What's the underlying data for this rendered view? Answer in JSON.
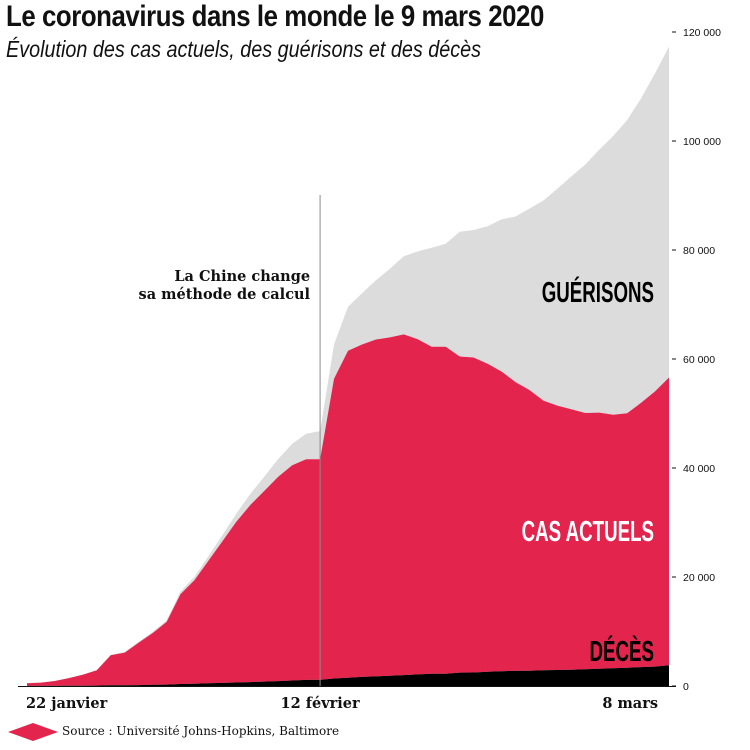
{
  "header": {
    "title": "Le coronavirus dans le monde le 9 mars 2020",
    "subtitle": "Évolution des cas actuels, des guérisons et des décès"
  },
  "footer": {
    "source": "Source : Université Johns-Hopkins, Baltimore"
  },
  "colors": {
    "recovered": "#dcdcdc",
    "active": "#e3254d",
    "deaths": "#000000",
    "logo": "#e3254d"
  },
  "chart_data": {
    "type": "area",
    "stacked": true,
    "x_labels": [
      "22 janvier",
      "12 février",
      "8 mars"
    ],
    "ylim": [
      0,
      120000
    ],
    "yticks": [
      0,
      20000,
      40000,
      60000,
      80000,
      100000,
      120000
    ],
    "ytick_labels": [
      "0",
      "20 000",
      "40 000",
      "60 000",
      "80 000",
      "100 000",
      "120 000"
    ],
    "y_axis_position": "right",
    "grid": false,
    "annotation": {
      "at_x": "12 février",
      "lines": [
        "La Chine change",
        "sa méthode de calcul"
      ]
    },
    "x": [
      "2020-01-22",
      "2020-01-23",
      "2020-01-24",
      "2020-01-25",
      "2020-01-26",
      "2020-01-27",
      "2020-01-28",
      "2020-01-29",
      "2020-01-30",
      "2020-01-31",
      "2020-02-01",
      "2020-02-02",
      "2020-02-03",
      "2020-02-04",
      "2020-02-05",
      "2020-02-06",
      "2020-02-07",
      "2020-02-08",
      "2020-02-09",
      "2020-02-10",
      "2020-02-11",
      "2020-02-12",
      "2020-02-13",
      "2020-02-14",
      "2020-02-15",
      "2020-02-16",
      "2020-02-17",
      "2020-02-18",
      "2020-02-19",
      "2020-02-20",
      "2020-02-21",
      "2020-02-22",
      "2020-02-23",
      "2020-02-24",
      "2020-02-25",
      "2020-02-26",
      "2020-02-27",
      "2020-02-28",
      "2020-02-29",
      "2020-03-01",
      "2020-03-02",
      "2020-03-03",
      "2020-03-04",
      "2020-03-05",
      "2020-03-06",
      "2020-03-07",
      "2020-03-08"
    ],
    "series": [
      {
        "name": "DÉCÈS",
        "label_color": "#000000",
        "values": [
          17,
          18,
          26,
          42,
          56,
          82,
          131,
          133,
          171,
          213,
          259,
          362,
          426,
          492,
          564,
          634,
          719,
          806,
          906,
          1013,
          1113,
          1118,
          1371,
          1523,
          1666,
          1770,
          1868,
          2007,
          2122,
          2247,
          2251,
          2458,
          2469,
          2629,
          2708,
          2770,
          2814,
          2872,
          2941,
          2996,
          3085,
          3160,
          3254,
          3348,
          3460,
          3558,
          3802
        ]
      },
      {
        "name": "CAS ACTUELS",
        "label_color": "#ffffff",
        "values": [
          500,
          600,
          900,
          1400,
          2000,
          2800,
          5500,
          6000,
          7800,
          9500,
          11500,
          16500,
          19000,
          22500,
          26000,
          29500,
          32500,
          35000,
          37500,
          39500,
          40500,
          40500,
          55000,
          60000,
          61000,
          61800,
          62100,
          62500,
          61500,
          60000,
          60000,
          58000,
          57800,
          56500,
          55000,
          53000,
          51500,
          49500,
          48500,
          47800,
          47000,
          47000,
          46500,
          46700,
          48500,
          50500,
          52800
        ]
      },
      {
        "name": "GUÉRISONS",
        "label_color": "#000000",
        "values": [
          30,
          32,
          36,
          39,
          52,
          61,
          107,
          126,
          143,
          222,
          284,
          472,
          623,
          852,
          1124,
          1487,
          2011,
          2616,
          3244,
          3946,
          4683,
          5150,
          6295,
          8058,
          9395,
          10865,
          12583,
          14352,
          16121,
          18177,
          18890,
          22886,
          23394,
          25227,
          27905,
          30384,
          33277,
          36711,
          39782,
          42716,
          45602,
          48228,
          51170,
          53796,
          55865,
          58358,
          60694
        ]
      }
    ]
  }
}
